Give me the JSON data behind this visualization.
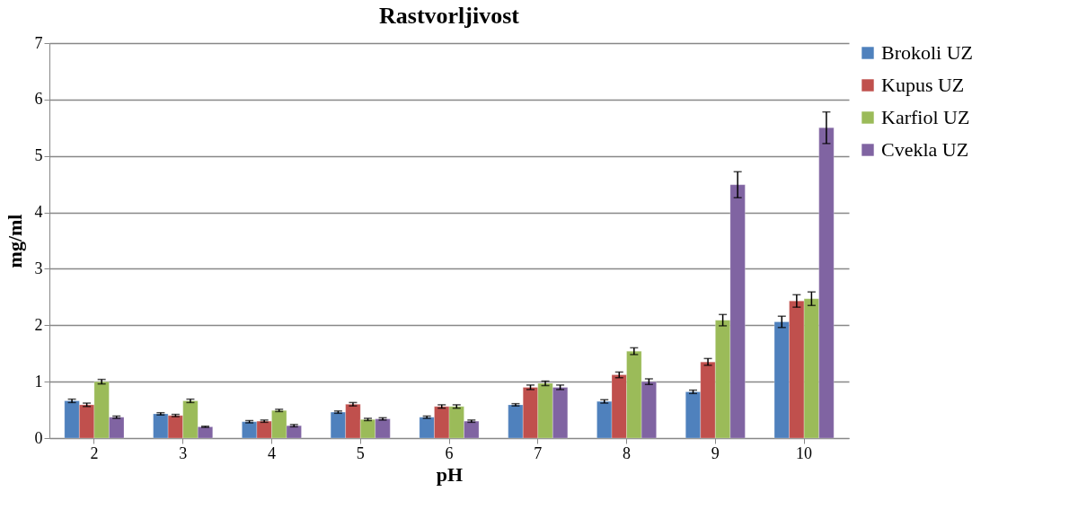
{
  "chart_data": {
    "type": "bar",
    "title": "Rastvorljivost",
    "xlabel": "pH",
    "ylabel": "mg/ml",
    "categories": [
      "2",
      "3",
      "4",
      "5",
      "6",
      "7",
      "8",
      "9",
      "10"
    ],
    "series": [
      {
        "name": "Brokoli UZ",
        "color": "#4f81bd",
        "values": [
          0.66,
          0.43,
          0.29,
          0.46,
          0.37,
          0.59,
          0.65,
          0.82,
          2.06
        ],
        "errors": [
          0.03,
          0.02,
          0.02,
          0.02,
          0.02,
          0.02,
          0.03,
          0.03,
          0.1
        ]
      },
      {
        "name": "Kupus UZ",
        "color": "#c0504d",
        "values": [
          0.59,
          0.4,
          0.3,
          0.6,
          0.56,
          0.9,
          1.12,
          1.35,
          2.43
        ],
        "errors": [
          0.03,
          0.02,
          0.02,
          0.03,
          0.03,
          0.04,
          0.05,
          0.06,
          0.11
        ]
      },
      {
        "name": "Karfiol UZ",
        "color": "#9bbb59",
        "values": [
          1.0,
          0.66,
          0.49,
          0.33,
          0.56,
          0.97,
          1.54,
          2.09,
          2.47
        ],
        "errors": [
          0.04,
          0.03,
          0.02,
          0.02,
          0.03,
          0.04,
          0.06,
          0.1,
          0.12
        ]
      },
      {
        "name": "Cvekla UZ",
        "color": "#8064a2",
        "values": [
          0.37,
          0.2,
          0.22,
          0.34,
          0.3,
          0.9,
          1.0,
          4.49,
          5.5
        ],
        "errors": [
          0.02,
          0.01,
          0.02,
          0.02,
          0.02,
          0.04,
          0.05,
          0.23,
          0.28
        ]
      }
    ],
    "ylim": [
      0,
      7
    ],
    "yticks": [
      0,
      1,
      2,
      3,
      4,
      5,
      6,
      7
    ],
    "grid": "y",
    "legend": "right"
  }
}
